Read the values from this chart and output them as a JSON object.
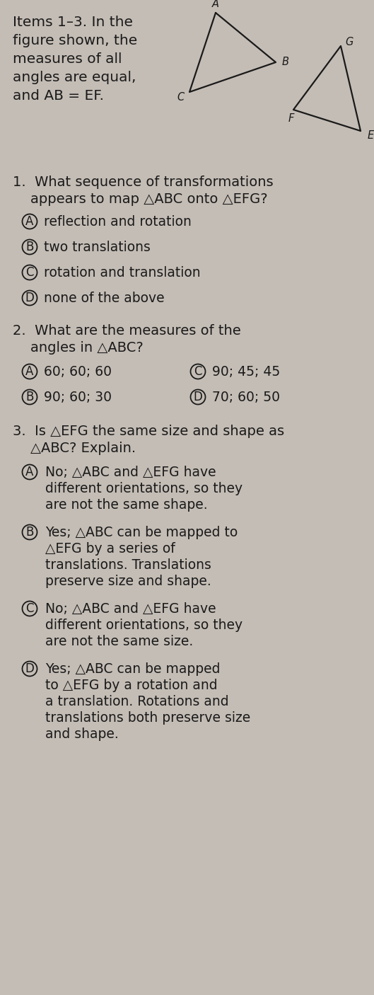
{
  "bg_color": "#c4bdb5",
  "text_color": "#1a1a1a",
  "fig_width": 5.29,
  "fig_height": 14.06,
  "dpi": 100,
  "header_lines": [
    "Items 1–3. In the",
    "figure shown, the",
    "measures of all",
    "angles are equal,",
    "and AB = EF."
  ],
  "tri_ABC": {
    "A": [
      305,
      18
    ],
    "B": [
      390,
      88
    ],
    "C": [
      268,
      130
    ]
  },
  "tri_EFG": {
    "E": [
      510,
      185
    ],
    "F": [
      415,
      155
    ],
    "G": [
      482,
      65
    ]
  },
  "q1_stem_lines": [
    "1.  What sequence of transformations",
    "    appears to map △ABC onto △EFG?"
  ],
  "q1_options": [
    [
      "A",
      "reflection and rotation"
    ],
    [
      "B",
      "two translations"
    ],
    [
      "C",
      "rotation and translation"
    ],
    [
      "D",
      "none of the above"
    ]
  ],
  "q2_stem_lines": [
    "2.  What are the measures of the",
    "    angles in △ABC?"
  ],
  "q2_options_left": [
    [
      "A",
      "60; 60; 60"
    ],
    [
      "B",
      "90; 60; 30"
    ]
  ],
  "q2_options_right": [
    [
      "C",
      "90; 45; 45"
    ],
    [
      "D",
      "70; 60; 50"
    ]
  ],
  "q3_stem_lines": [
    "3.  Is △EFG the same size and shape as",
    "    △ABC? Explain."
  ],
  "q3_options": [
    [
      "A",
      [
        "No; △ABC and △EFG have",
        "different orientations, so they",
        "are not the same shape."
      ]
    ],
    [
      "B",
      [
        "Yes; △ABC can be mapped to",
        "△EFG by a series of",
        "translations. Translations",
        "preserve size and shape."
      ]
    ],
    [
      "C",
      [
        "No; △ABC and △EFG have",
        "different orientations, so they",
        "are not the same size."
      ]
    ],
    [
      "D",
      [
        "Yes; △ABC can be mapped",
        "to △EFG by a rotation and",
        "a translation. Rotations and",
        "translations both preserve size",
        "and shape."
      ]
    ]
  ]
}
